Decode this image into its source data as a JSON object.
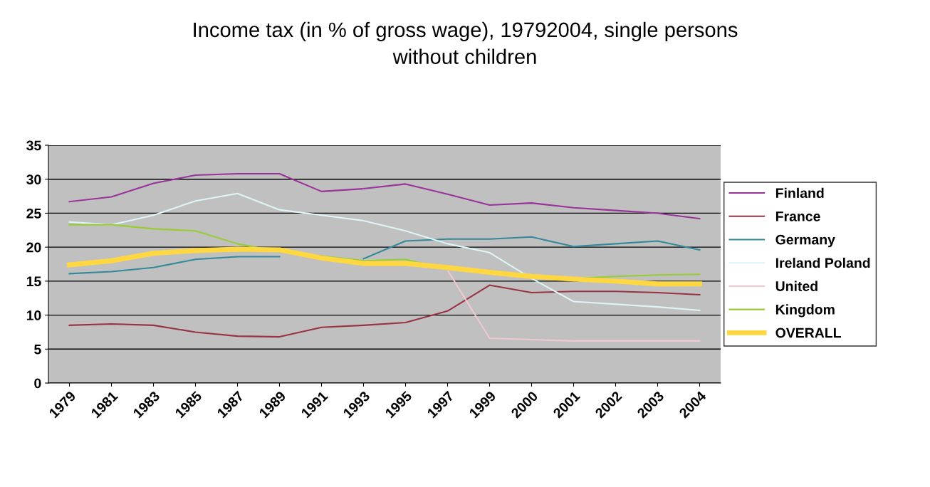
{
  "chart_data": {
    "type": "line",
    "title": "Income tax (in % of gross wage), 19792004, single persons\nwithout children",
    "categories": [
      "1979",
      "1981",
      "1983",
      "1985",
      "1987",
      "1989",
      "1991",
      "1993",
      "1995",
      "1997",
      "1999",
      "2000",
      "2001",
      "2002",
      "2003",
      "2004"
    ],
    "series": [
      {
        "name": "Finland",
        "color": "#993399",
        "values": [
          26.7,
          27.4,
          29.4,
          30.6,
          30.8,
          30.8,
          28.2,
          28.6,
          29.3,
          27.8,
          26.2,
          26.5,
          25.8,
          25.4,
          25.0,
          24.2
        ]
      },
      {
        "name": "France",
        "color": "#993344",
        "values": [
          8.5,
          8.7,
          8.5,
          7.5,
          6.9,
          6.8,
          8.2,
          8.5,
          8.9,
          10.6,
          14.4,
          13.3,
          13.5,
          13.5,
          13.3,
          13.0
        ]
      },
      {
        "name": "Germany",
        "color": "#338899",
        "values": [
          16.1,
          16.4,
          17.0,
          18.2,
          18.6,
          18.6,
          null,
          18.3,
          20.9,
          21.2,
          21.2,
          21.5,
          20.1,
          20.5,
          20.9,
          19.6
        ]
      },
      {
        "name": "Ireland Poland",
        "color": "#ddf5f5",
        "values": [
          23.7,
          23.3,
          24.7,
          26.8,
          27.9,
          25.5,
          24.7,
          23.9,
          22.4,
          20.5,
          19.2,
          15.4,
          12.0,
          11.6,
          11.2,
          10.7
        ]
      },
      {
        "name": "United",
        "color": "#f0c8d0",
        "values": [
          null,
          null,
          null,
          null,
          null,
          null,
          null,
          null,
          null,
          16.6,
          6.6,
          6.4,
          6.2,
          6.2,
          6.2,
          6.2
        ]
      },
      {
        "name": "Kingdom",
        "color": "#99cc33",
        "values": [
          23.3,
          23.3,
          22.7,
          22.4,
          20.5,
          19.3,
          18.7,
          18.0,
          18.2,
          16.7,
          null,
          null,
          15.4,
          15.7,
          15.9,
          16.0
        ]
      },
      {
        "name": "OVERALL",
        "color": "#ffd740",
        "values": [
          17.4,
          18.0,
          19.1,
          19.5,
          19.7,
          19.6,
          18.4,
          17.6,
          17.6,
          17.0,
          16.3,
          15.7,
          15.3,
          15.0,
          14.6,
          14.6
        ]
      }
    ],
    "ylim": [
      0,
      35
    ],
    "yticks": [
      0,
      5,
      10,
      15,
      20,
      25,
      30,
      35
    ],
    "grid": "y",
    "legend": "right",
    "marker": "none",
    "line_style": "solid"
  }
}
